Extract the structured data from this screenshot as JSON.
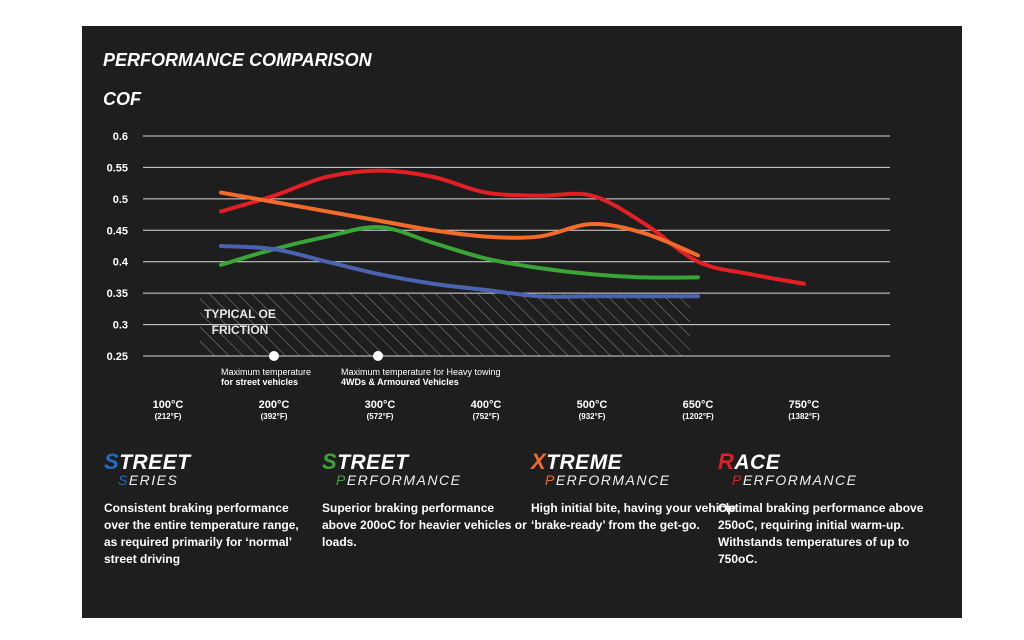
{
  "chart_data": {
    "type": "line",
    "title": "PERFORMANCE COMPARISON",
    "ylabel": "COF",
    "categories": [
      "100°C",
      null,
      "200°C",
      null,
      "300°C",
      null,
      "400°C",
      null,
      "500°C",
      null,
      "650°C",
      null,
      "750°C"
    ],
    "category_sublabels": [
      "(212°F)",
      null,
      "(392°F)",
      null,
      "(572°F)",
      null,
      "(752°F)",
      null,
      "(932°F)",
      null,
      "(1202°F)",
      null,
      "(1382°F)"
    ],
    "ylim": [
      0.25,
      0.6
    ],
    "yticks": [
      0.6,
      0.55,
      0.5,
      0.45,
      0.4,
      0.35,
      0.3,
      0.25
    ],
    "grid": true,
    "series": [
      {
        "name": "Race Performance",
        "color": "#e31e24",
        "values": [
          null,
          0.48,
          0.505,
          0.535,
          0.545,
          0.535,
          0.51,
          0.505,
          0.505,
          0.46,
          0.4,
          0.38,
          0.365
        ]
      },
      {
        "name": "Xtreme Performance",
        "color": "#f26b2a",
        "values": [
          null,
          0.51,
          0.495,
          0.48,
          0.465,
          0.45,
          0.44,
          0.44,
          0.46,
          0.445,
          0.41,
          null,
          null
        ]
      },
      {
        "name": "Street Performance",
        "color": "#3aa537",
        "values": [
          null,
          0.395,
          0.42,
          0.44,
          0.455,
          0.43,
          0.405,
          0.39,
          0.38,
          0.375,
          0.375,
          null,
          null
        ]
      },
      {
        "name": "Street Series",
        "color": "#4a63b0",
        "values": [
          null,
          0.425,
          0.42,
          0.4,
          0.38,
          0.365,
          0.355,
          0.345,
          0.345,
          0.345,
          0.345,
          null,
          null
        ]
      }
    ],
    "shaded_range": [
      0.25,
      0.35
    ],
    "shaded_label": "TYPICAL OE FRICTION",
    "notes": [
      [
        "Maximum temperature",
        "for street vehicles"
      ],
      [
        "Maximum temperature for Heavy towing",
        "4WDs & Armoured Vehicles"
      ]
    ]
  },
  "products": [
    {
      "name": "STREET",
      "subtitle": "SERIES",
      "color": "#1f6fc6",
      "description": "Consistent braking performance over the entire temperature range, as required primarily for ‘normal’ street driving"
    },
    {
      "name": "STREET",
      "subtitle": "PERFORMANCE",
      "color": "#3aa537",
      "description": "Superior braking performance above 200oC for heavier vehicles or loads."
    },
    {
      "name": "XTREME",
      "subtitle": "PERFORMANCE",
      "color": "#f26b2a",
      "description": "High initial bite, having your vehicle ‘brake-ready’ from the get-go."
    },
    {
      "name": "RACE",
      "subtitle": "PERFORMANCE",
      "color": "#e31e24",
      "description": "Optimal braking performance above 250oC, requiring initial warm-up. Withstands temperatures of up to 750oC."
    }
  ]
}
